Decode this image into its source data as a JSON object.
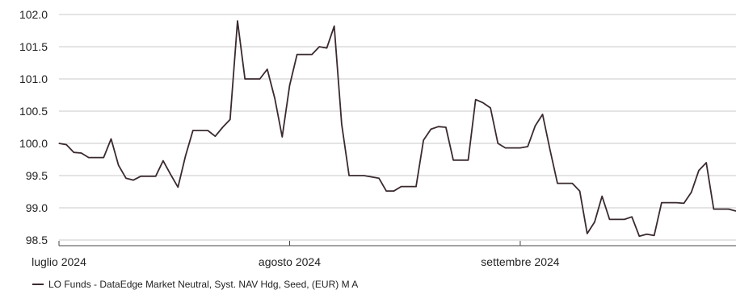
{
  "chart_data": {
    "type": "line",
    "title": "",
    "xlabel": "",
    "ylabel": "",
    "ylim": [
      98.5,
      102.0
    ],
    "y_ticks": [
      "102.0",
      "101.5",
      "101.0",
      "100.5",
      "100.0",
      "99.5",
      "99.0",
      "98.5"
    ],
    "x_ticks": [
      {
        "label": "luglio 2024",
        "x": 1
      },
      {
        "label": "agosto 2024",
        "x": 32
      },
      {
        "label": "settembre 2024",
        "x": 63
      }
    ],
    "grid": true,
    "legend_position": "bottom-left",
    "line_color": "#3a2a2e",
    "series": [
      {
        "name": "LO Funds - DataEdge Market Neutral, Syst. NAV Hdg, Seed, (EUR) M A",
        "x": [
          1,
          2,
          3,
          4,
          5,
          6,
          7,
          8,
          9,
          10,
          11,
          12,
          13,
          14,
          15,
          16,
          17,
          18,
          19,
          20,
          21,
          22,
          23,
          24,
          25,
          26,
          27,
          28,
          29,
          30,
          31,
          32,
          33,
          34,
          35,
          36,
          37,
          38,
          39,
          40,
          41,
          42,
          43,
          44,
          45,
          46,
          47,
          48,
          49,
          50,
          51,
          52,
          53,
          54,
          55,
          56,
          57,
          58,
          59,
          60,
          61,
          62,
          63,
          64,
          65,
          66,
          67,
          68,
          69,
          70,
          71,
          72,
          73,
          74,
          75,
          76,
          77,
          78,
          79,
          80,
          81,
          82,
          83,
          84,
          85,
          86,
          87,
          88,
          89,
          90,
          91,
          92
        ],
        "values": [
          100.0,
          99.98,
          99.86,
          99.85,
          99.78,
          99.78,
          99.78,
          100.07,
          99.66,
          99.46,
          99.43,
          99.49,
          99.49,
          99.49,
          99.73,
          99.52,
          99.32,
          99.8,
          100.2,
          100.2,
          100.2,
          100.11,
          100.25,
          100.37,
          101.9,
          101.0,
          101.0,
          101.0,
          101.15,
          100.7,
          100.1,
          100.9,
          101.38,
          101.38,
          101.38,
          101.5,
          101.48,
          101.82,
          100.3,
          99.5,
          99.5,
          99.5,
          99.48,
          99.46,
          99.26,
          99.26,
          99.33,
          99.33,
          99.33,
          100.05,
          100.22,
          100.26,
          100.25,
          99.74,
          99.74,
          99.74,
          100.68,
          100.63,
          100.55,
          100.0,
          99.93,
          99.93,
          99.93,
          99.95,
          100.27,
          100.45,
          99.9,
          99.38,
          99.38,
          99.38,
          99.26,
          98.6,
          98.78,
          99.18,
          98.82,
          98.82,
          98.82,
          98.86,
          98.56,
          98.59,
          98.57,
          99.08,
          99.08,
          99.08,
          99.07,
          99.24,
          99.58,
          99.7,
          98.98,
          98.98,
          98.98,
          98.95
        ]
      }
    ]
  }
}
